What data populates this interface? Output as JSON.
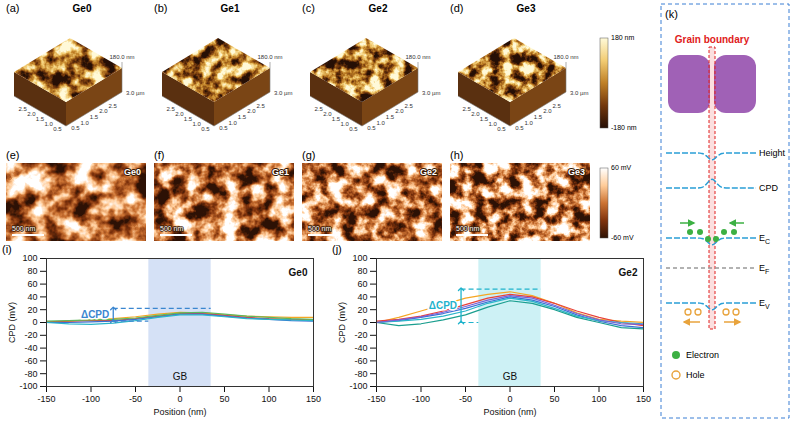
{
  "afm_panels": [
    {
      "letter": "(a)",
      "name": "Ge0"
    },
    {
      "letter": "(b)",
      "name": "Ge1"
    },
    {
      "letter": "(c)",
      "name": "Ge2"
    },
    {
      "letter": "(d)",
      "name": "Ge3"
    }
  ],
  "afm_axes": {
    "lateral_range": [
      0,
      3
    ],
    "lateral_ticks": [
      0.5,
      {
        "value": 1,
        "label": "1.0"
      },
      1.5,
      {
        "value": 2,
        "label": "2.0"
      },
      2.5
    ],
    "lateral_end": {
      "value": 3,
      "label": "3.0 µm"
    },
    "height_label": {
      "value": 180,
      "label": "180.0 nm"
    }
  },
  "afm_colorbar": {
    "range": [
      -180,
      180
    ],
    "ticks": [
      {
        "value": 180,
        "label": "180 nm"
      },
      {
        "value": -180,
        "label": "-180 nm"
      }
    ]
  },
  "kpfm_panels": [
    {
      "letter": "(e)",
      "name": "Ge0",
      "scale_bar": "500 nm"
    },
    {
      "letter": "(f)",
      "name": "Ge1",
      "scale_bar": "500 nm"
    },
    {
      "letter": "(g)",
      "name": "Ge2",
      "scale_bar": "500 nm"
    },
    {
      "letter": "(h)",
      "name": "Ge3",
      "scale_bar": "500 nm"
    }
  ],
  "kpfm_colorbar": {
    "range": [
      -60,
      60
    ],
    "ticks": [
      {
        "value": 60,
        "label": "60 mV"
      },
      {
        "value": -60,
        "label": "-60 mV"
      }
    ]
  },
  "chart_data": [
    {
      "type": "line",
      "panel_letter": "(i)",
      "title": "Ge0",
      "x_label": "Position (nm)",
      "y_label": "CPD (mV)",
      "xlim": [
        -150,
        150
      ],
      "xticks": [
        -150,
        -100,
        -50,
        0,
        50,
        100,
        150
      ],
      "ylim": [
        -100,
        100
      ],
      "yticks": [
        -100,
        -80,
        -60,
        -40,
        -20,
        0,
        20,
        40,
        60,
        80,
        100
      ],
      "x": [
        -150,
        -125,
        -100,
        -75,
        -50,
        -25,
        0,
        25,
        50,
        75,
        100,
        125,
        150
      ],
      "series": [
        {
          "color": "#f5a623",
          "values": [
            0,
            2,
            4,
            6,
            9,
            13,
            16,
            15,
            12,
            10,
            9,
            8,
            8
          ]
        },
        {
          "color": "#e8413a",
          "values": [
            1,
            2,
            3,
            3,
            6,
            10,
            14,
            14,
            11,
            8,
            6,
            5,
            4
          ]
        },
        {
          "color": "#3b6fd4",
          "values": [
            0,
            0,
            1,
            2,
            5,
            9,
            13,
            13,
            10,
            7,
            5,
            3,
            2
          ]
        },
        {
          "color": "#2bb5c9",
          "values": [
            0,
            -2,
            -3,
            -1,
            3,
            8,
            12,
            12,
            9,
            6,
            5,
            4,
            3
          ]
        },
        {
          "color": "#5cb85c",
          "values": [
            2,
            3,
            4,
            5,
            7,
            11,
            15,
            16,
            13,
            10,
            8,
            6,
            5
          ]
        }
      ],
      "gb_band": [
        -35,
        35
      ],
      "gb_label": "GB",
      "delta_cpd": {
        "label": "ΔCPD",
        "x": -75,
        "low": 2,
        "high": 22
      }
    },
    {
      "type": "line",
      "panel_letter": "(j)",
      "title": "Ge2",
      "x_label": "Position (nm)",
      "y_label": "CPD (mV)",
      "xlim": [
        -150,
        150
      ],
      "xticks": [
        -150,
        -100,
        -50,
        0,
        50,
        100,
        150
      ],
      "ylim": [
        -100,
        100
      ],
      "yticks": [
        -100,
        -80,
        -60,
        -40,
        -20,
        0,
        20,
        40,
        60,
        80,
        100
      ],
      "x": [
        -150,
        -125,
        -100,
        -75,
        -50,
        -25,
        0,
        25,
        50,
        75,
        100,
        125,
        150
      ],
      "series": [
        {
          "color": "#f5a623",
          "values": [
            0,
            8,
            18,
            28,
            38,
            44,
            48,
            42,
            30,
            15,
            5,
            2,
            0
          ]
        },
        {
          "color": "#e8413a",
          "values": [
            2,
            5,
            10,
            18,
            28,
            38,
            44,
            40,
            30,
            18,
            8,
            0,
            -5
          ]
        },
        {
          "color": "#3b6fd4",
          "values": [
            0,
            3,
            8,
            14,
            22,
            32,
            40,
            35,
            25,
            12,
            2,
            -5,
            -8
          ]
        },
        {
          "color": "#2bb5c9",
          "values": [
            0,
            2,
            5,
            10,
            18,
            30,
            38,
            33,
            22,
            10,
            3,
            0,
            -2
          ]
        },
        {
          "color": "#1a9e8f",
          "values": [
            0,
            -5,
            -2,
            4,
            12,
            24,
            34,
            30,
            20,
            8,
            0,
            -8,
            -10
          ]
        },
        {
          "color": "#7b5fd6",
          "values": [
            0,
            4,
            9,
            16,
            25,
            35,
            42,
            38,
            27,
            14,
            4,
            -2,
            -3
          ]
        }
      ],
      "gb_band": [
        -35,
        35
      ],
      "gb_label": "GB",
      "delta_cpd": {
        "label": "ΔCPD",
        "x": -55,
        "low": 0,
        "high": 52
      }
    }
  ],
  "schematic": {
    "letter": "(k)",
    "title": "Grain boundary",
    "curves": [
      {
        "label": "Height"
      },
      {
        "label": "CPD"
      },
      {
        "label": "E",
        "sub": "C"
      },
      {
        "label": "E",
        "sub": "F"
      },
      {
        "label": "E",
        "sub": "V"
      }
    ],
    "key_items": [
      {
        "label": "Electron"
      },
      {
        "label": "Hole"
      }
    ]
  }
}
